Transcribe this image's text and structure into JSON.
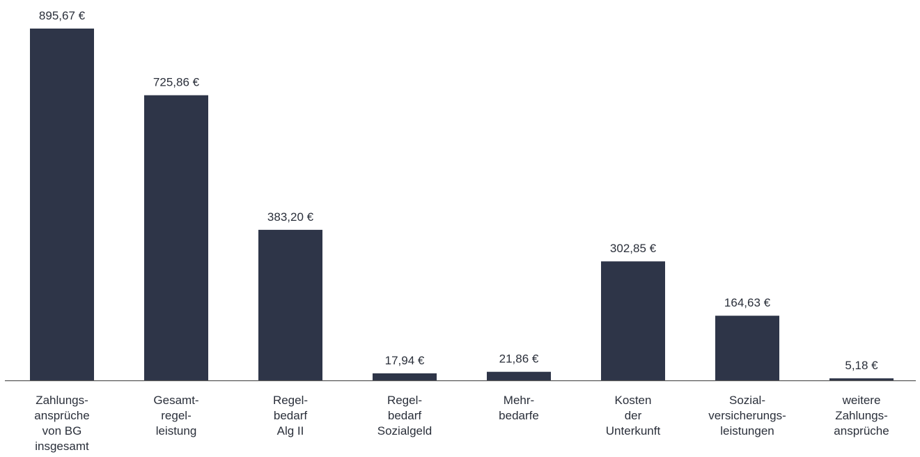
{
  "chart_data": {
    "type": "bar",
    "categories": [
      [
        "Zahlungs-",
        "ansprüche",
        "von BG",
        "insgesamt"
      ],
      [
        "Gesamt-",
        "regel-",
        "leistung"
      ],
      [
        "Regel-",
        "bedarf",
        "Alg II"
      ],
      [
        "Regel-",
        "bedarf",
        "Sozialgeld"
      ],
      [
        "Mehr-",
        "bedarfe"
      ],
      [
        "Kosten",
        "der",
        "Unterkunft"
      ],
      [
        "Sozial-",
        "versicherungs-",
        "leistungen"
      ],
      [
        "weitere",
        "Zahlungs-",
        "ansprüche"
      ]
    ],
    "values": [
      895.67,
      725.86,
      383.2,
      17.94,
      21.86,
      302.85,
      164.63,
      5.18
    ],
    "value_labels": [
      "895,67 €",
      "725,86 €",
      "383,20 €",
      "17,94 €",
      "21,86 €",
      "302,85 €",
      "164,63 €",
      "5,18 €"
    ],
    "ylim": [
      0,
      895.67
    ],
    "grid": false,
    "bar_color": "#2e3548",
    "axis_color": "#555555"
  }
}
